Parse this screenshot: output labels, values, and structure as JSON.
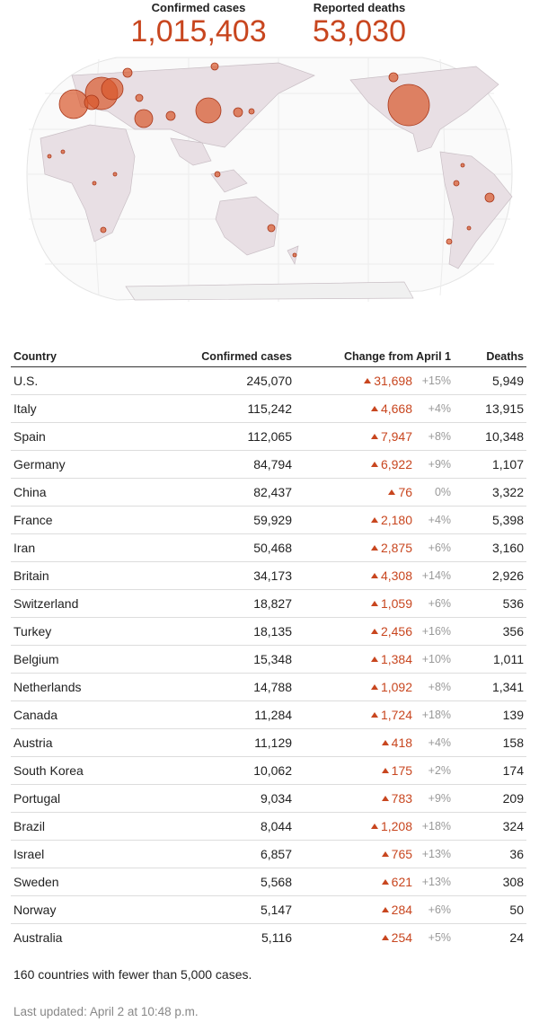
{
  "header": {
    "cases_label": "Confirmed cases",
    "cases_value": "1,015,403",
    "deaths_label": "Reported deaths",
    "deaths_value": "53,030"
  },
  "table": {
    "columns": [
      "Country",
      "Confirmed cases",
      "Change from April 1",
      "Deaths"
    ],
    "rows": [
      [
        "U.S.",
        "245,070",
        "31,698",
        "+15%",
        "5,949"
      ],
      [
        "Italy",
        "115,242",
        "4,668",
        "+4%",
        "13,915"
      ],
      [
        "Spain",
        "112,065",
        "7,947",
        "+8%",
        "10,348"
      ],
      [
        "Germany",
        "84,794",
        "6,922",
        "+9%",
        "1,107"
      ],
      [
        "China",
        "82,437",
        "76",
        "0%",
        "3,322"
      ],
      [
        "France",
        "59,929",
        "2,180",
        "+4%",
        "5,398"
      ],
      [
        "Iran",
        "50,468",
        "2,875",
        "+6%",
        "3,160"
      ],
      [
        "Britain",
        "34,173",
        "4,308",
        "+14%",
        "2,926"
      ],
      [
        "Switzerland",
        "18,827",
        "1,059",
        "+6%",
        "536"
      ],
      [
        "Turkey",
        "18,135",
        "2,456",
        "+16%",
        "356"
      ],
      [
        "Belgium",
        "15,348",
        "1,384",
        "+10%",
        "1,011"
      ],
      [
        "Netherlands",
        "14,788",
        "1,092",
        "+8%",
        "1,341"
      ],
      [
        "Canada",
        "11,284",
        "1,724",
        "+18%",
        "139"
      ],
      [
        "Austria",
        "11,129",
        "418",
        "+4%",
        "158"
      ],
      [
        "South Korea",
        "10,062",
        "175",
        "+2%",
        "174"
      ],
      [
        "Portugal",
        "9,034",
        "783",
        "+9%",
        "209"
      ],
      [
        "Brazil",
        "8,044",
        "1,208",
        "+18%",
        "324"
      ],
      [
        "Israel",
        "6,857",
        "765",
        "+13%",
        "36"
      ],
      [
        "Sweden",
        "5,568",
        "621",
        "+13%",
        "308"
      ],
      [
        "Norway",
        "5,147",
        "284",
        "+6%",
        "50"
      ],
      [
        "Australia",
        "5,116",
        "254",
        "+5%",
        "24"
      ]
    ]
  },
  "footer": {
    "note": "160 countries with fewer than 5,000 cases.",
    "updated": "Last updated: April 2 at 10:48 p.m."
  }
}
